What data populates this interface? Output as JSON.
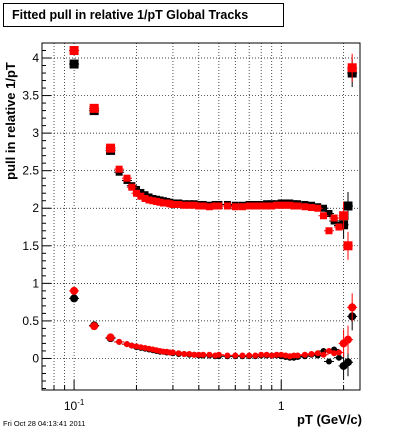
{
  "chart_data": {
    "type": "scatter",
    "title": "Fitted pull in relative 1/pT  Global Tracks",
    "xlabel": "pT (GeV/c)",
    "ylabel": "pull in relative 1/pT",
    "x_scale": "log",
    "xlim": [
      0.07,
      2.4
    ],
    "ylim": [
      -0.42,
      4.2
    ],
    "grid": true,
    "x_tick_labels": [
      {
        "value": 0.1,
        "base": "10",
        "exp": "-1"
      },
      {
        "value": 1,
        "base": "1",
        "exp": ""
      }
    ],
    "y_ticks": [
      0,
      0.5,
      1,
      1.5,
      2,
      2.5,
      3,
      3.5,
      4
    ],
    "y_tick_labels": [
      "0",
      "0.5",
      "1",
      "1.5",
      "2",
      "2.5",
      "3",
      "3.5",
      "4"
    ],
    "footer": "Fri Oct 28 04:13:41 2011",
    "colors": {
      "series_black": "#000000",
      "series_red": "#ff0000",
      "grid": "#000000"
    },
    "series": [
      {
        "marker": "square",
        "color": "#000000",
        "x": [
          0.1,
          0.125,
          0.15,
          0.165,
          0.18,
          0.19,
          0.2,
          0.21,
          0.22,
          0.23,
          0.24,
          0.25,
          0.26,
          0.27,
          0.28,
          0.29,
          0.3,
          0.32,
          0.34,
          0.36,
          0.38,
          0.4,
          0.42,
          0.45,
          0.48,
          0.5,
          0.55,
          0.6,
          0.65,
          0.7,
          0.75,
          0.8,
          0.85,
          0.9,
          0.95,
          1.0,
          1.05,
          1.1,
          1.15,
          1.2,
          1.3,
          1.4,
          1.5,
          1.6,
          1.7,
          1.8,
          1.9,
          2.0,
          2.1,
          2.2
        ],
        "y": [
          3.92,
          3.3,
          2.77,
          2.48,
          2.37,
          2.3,
          2.25,
          2.21,
          2.18,
          2.15,
          2.13,
          2.12,
          2.11,
          2.1,
          2.09,
          2.08,
          2.07,
          2.07,
          2.06,
          2.06,
          2.06,
          2.05,
          2.05,
          2.04,
          2.05,
          2.05,
          2.05,
          2.04,
          2.04,
          2.05,
          2.05,
          2.05,
          2.06,
          2.06,
          2.06,
          2.07,
          2.07,
          2.07,
          2.06,
          2.06,
          2.05,
          2.04,
          2.02,
          2.0,
          1.93,
          1.83,
          1.77,
          1.78,
          2.03,
          3.8
        ]
      },
      {
        "marker": "square",
        "color": "#ff0000",
        "x": [
          0.1,
          0.125,
          0.15,
          0.165,
          0.18,
          0.19,
          0.2,
          0.21,
          0.22,
          0.23,
          0.24,
          0.25,
          0.26,
          0.27,
          0.28,
          0.29,
          0.3,
          0.32,
          0.34,
          0.36,
          0.38,
          0.4,
          0.42,
          0.45,
          0.48,
          0.5,
          0.55,
          0.6,
          0.65,
          0.7,
          0.75,
          0.8,
          0.85,
          0.9,
          0.95,
          1.0,
          1.05,
          1.1,
          1.15,
          1.2,
          1.3,
          1.4,
          1.5,
          1.6,
          1.7,
          1.8,
          1.9,
          2.0,
          2.1,
          2.2
        ],
        "y": [
          4.1,
          3.33,
          2.8,
          2.52,
          2.4,
          2.28,
          2.2,
          2.16,
          2.13,
          2.11,
          2.1,
          2.09,
          2.08,
          2.07,
          2.07,
          2.06,
          2.05,
          2.05,
          2.04,
          2.04,
          2.04,
          2.03,
          2.03,
          2.02,
          2.03,
          2.03,
          2.03,
          2.02,
          2.02,
          2.03,
          2.03,
          2.03,
          2.03,
          2.03,
          2.04,
          2.04,
          2.04,
          2.04,
          2.03,
          2.03,
          2.02,
          2.01,
          2.0,
          1.9,
          1.7,
          1.87,
          1.75,
          1.9,
          1.5,
          3.87
        ]
      },
      {
        "marker": "circle",
        "color": "#000000",
        "x": [
          0.1,
          0.125,
          0.15,
          0.165,
          0.18,
          0.19,
          0.2,
          0.21,
          0.22,
          0.23,
          0.24,
          0.25,
          0.26,
          0.27,
          0.28,
          0.29,
          0.3,
          0.32,
          0.34,
          0.36,
          0.38,
          0.4,
          0.42,
          0.45,
          0.48,
          0.5,
          0.55,
          0.6,
          0.65,
          0.7,
          0.75,
          0.8,
          0.85,
          0.9,
          0.95,
          1.0,
          1.05,
          1.1,
          1.15,
          1.2,
          1.3,
          1.4,
          1.5,
          1.6,
          1.7,
          1.8,
          1.9,
          2.0,
          2.1,
          2.2
        ],
        "y": [
          0.8,
          0.44,
          0.27,
          0.22,
          0.19,
          0.17,
          0.15,
          0.14,
          0.13,
          0.12,
          0.11,
          0.1,
          0.09,
          0.09,
          0.08,
          0.08,
          0.07,
          0.06,
          0.06,
          0.05,
          0.05,
          0.04,
          0.04,
          0.04,
          0.03,
          0.03,
          0.03,
          0.03,
          0.03,
          0.03,
          0.03,
          0.04,
          0.04,
          0.04,
          0.04,
          0.03,
          0.02,
          0.01,
          0.01,
          0.02,
          0.03,
          0.05,
          0.04,
          0.1,
          -0.04,
          0.12,
          0.01,
          -0.1,
          -0.05,
          0.56
        ]
      },
      {
        "marker": "circle",
        "color": "#ff0000",
        "x": [
          0.1,
          0.125,
          0.15,
          0.165,
          0.18,
          0.19,
          0.2,
          0.21,
          0.22,
          0.23,
          0.24,
          0.25,
          0.26,
          0.27,
          0.28,
          0.29,
          0.3,
          0.32,
          0.34,
          0.36,
          0.38,
          0.4,
          0.42,
          0.45,
          0.48,
          0.5,
          0.55,
          0.6,
          0.65,
          0.7,
          0.75,
          0.8,
          0.85,
          0.9,
          0.95,
          1.0,
          1.05,
          1.1,
          1.15,
          1.2,
          1.3,
          1.4,
          1.5,
          1.6,
          1.7,
          1.8,
          1.9,
          2.0,
          2.1,
          2.2
        ],
        "y": [
          0.9,
          0.43,
          0.28,
          0.22,
          0.19,
          0.17,
          0.16,
          0.15,
          0.14,
          0.13,
          0.12,
          0.11,
          0.1,
          0.09,
          0.09,
          0.08,
          0.08,
          0.07,
          0.06,
          0.06,
          0.05,
          0.05,
          0.05,
          0.05,
          0.04,
          0.05,
          0.04,
          0.04,
          0.04,
          0.04,
          0.04,
          0.05,
          0.05,
          0.04,
          0.05,
          0.05,
          0.04,
          0.03,
          0.04,
          0.04,
          0.05,
          0.06,
          0.07,
          0.05,
          0.1,
          0.07,
          0.08,
          0.2,
          0.25,
          0.68
        ]
      }
    ]
  }
}
